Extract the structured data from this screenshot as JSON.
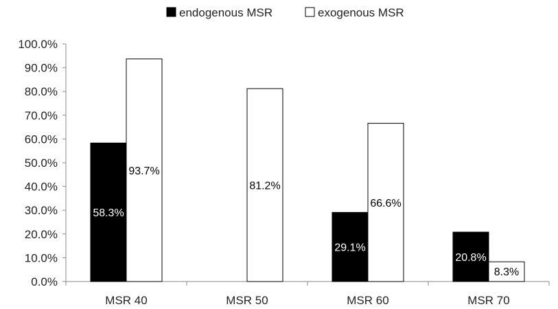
{
  "chart_data": {
    "type": "bar",
    "categories": [
      "MSR 40",
      "MSR 50",
      "MSR 60",
      "MSR 70"
    ],
    "series": [
      {
        "name": "endogenous MSR",
        "values": [
          58.3,
          null,
          29.1,
          20.8
        ],
        "labels": [
          "58.3%",
          "",
          "29.1%",
          "20.8%"
        ],
        "fill": "#000000",
        "label_color": "#ffffff"
      },
      {
        "name": "exogenous MSR",
        "values": [
          93.7,
          81.2,
          66.6,
          8.3
        ],
        "labels": [
          "93.7%",
          "81.2%",
          "66.6%",
          "8.3%"
        ],
        "fill": "#ffffff",
        "label_color": "#000000"
      }
    ],
    "ylim": [
      0,
      100
    ],
    "yticks": [
      "0.0%",
      "10.0%",
      "20.0%",
      "30.0%",
      "40.0%",
      "50.0%",
      "60.0%",
      "70.0%",
      "80.0%",
      "90.0%",
      "100.0%"
    ],
    "xlabel": "",
    "ylabel": "",
    "title": "",
    "grid": false,
    "legend": "top"
  }
}
